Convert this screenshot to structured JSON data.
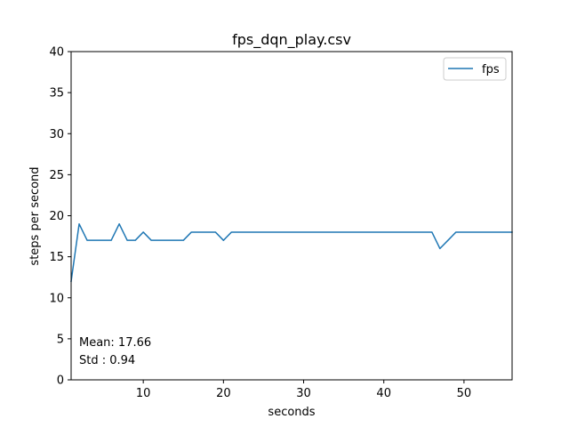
{
  "chart_data": {
    "type": "line",
    "title": "fps_dqn_play.csv",
    "xlabel": "seconds",
    "ylabel": "steps per second",
    "xlim": [
      1,
      56
    ],
    "ylim": [
      0,
      40
    ],
    "xticks": [
      10,
      20,
      30,
      40,
      50
    ],
    "yticks": [
      0,
      5,
      10,
      15,
      20,
      25,
      30,
      35,
      40
    ],
    "grid": false,
    "legend": "top-right",
    "series": [
      {
        "name": "fps",
        "color": "#1f77b4",
        "x": [
          1,
          2,
          3,
          4,
          5,
          6,
          7,
          8,
          9,
          10,
          11,
          12,
          13,
          14,
          15,
          16,
          17,
          18,
          19,
          20,
          21,
          22,
          23,
          24,
          25,
          26,
          27,
          28,
          29,
          30,
          31,
          32,
          33,
          34,
          35,
          36,
          37,
          38,
          39,
          40,
          41,
          42,
          43,
          44,
          45,
          46,
          47,
          48,
          49,
          50,
          51,
          52,
          53,
          54,
          55,
          56
        ],
        "y": [
          12,
          19,
          17,
          17,
          17,
          17,
          19,
          17,
          17,
          18,
          17,
          17,
          17,
          17,
          17,
          18,
          18,
          18,
          18,
          17,
          18,
          18,
          18,
          18,
          18,
          18,
          18,
          18,
          18,
          18,
          18,
          18,
          18,
          18,
          18,
          18,
          18,
          18,
          18,
          18,
          18,
          18,
          18,
          18,
          18,
          18,
          16,
          17,
          18,
          18,
          18,
          18,
          18,
          18,
          18,
          18
        ]
      }
    ],
    "annotations": [
      "Mean: 17.66",
      "Std : 0.94"
    ]
  }
}
